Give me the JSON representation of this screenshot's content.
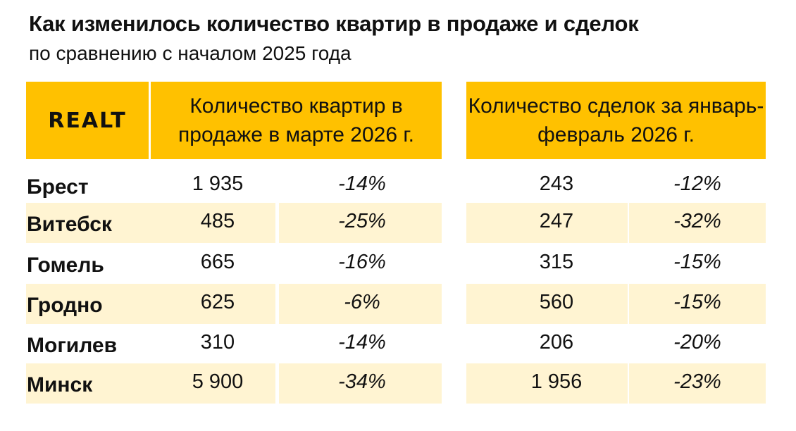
{
  "title": "Как изменилось количество квартир в продаже и сделок",
  "subtitle": "по сравнению с началом 2025 года",
  "logo": "REALT",
  "headers": {
    "listings": "Количество квартир в продаже в марте 2026 г.",
    "deals": "Количество сделок за январь-февраль 2026 г."
  },
  "colors": {
    "accent": "#ffc100",
    "band": "#fff4d2"
  },
  "rows": [
    {
      "city": "Брест",
      "listings": "1 935",
      "listings_change": "-14%",
      "deals": "243",
      "deals_change": "-12%"
    },
    {
      "city": "Витебск",
      "listings": "485",
      "listings_change": "-25%",
      "deals": "247",
      "deals_change": "-32%"
    },
    {
      "city": "Гомель",
      "listings": "665",
      "listings_change": "-16%",
      "deals": "315",
      "deals_change": "-15%"
    },
    {
      "city": "Гродно",
      "listings": "625",
      "listings_change": "-6%",
      "deals": "560",
      "deals_change": "-15%"
    },
    {
      "city": "Могилев",
      "listings": "310",
      "listings_change": "-14%",
      "deals": "206",
      "deals_change": "-20%"
    },
    {
      "city": "Минск",
      "listings": "5 900",
      "listings_change": "-34%",
      "deals": "1 956",
      "deals_change": "-23%"
    }
  ]
}
